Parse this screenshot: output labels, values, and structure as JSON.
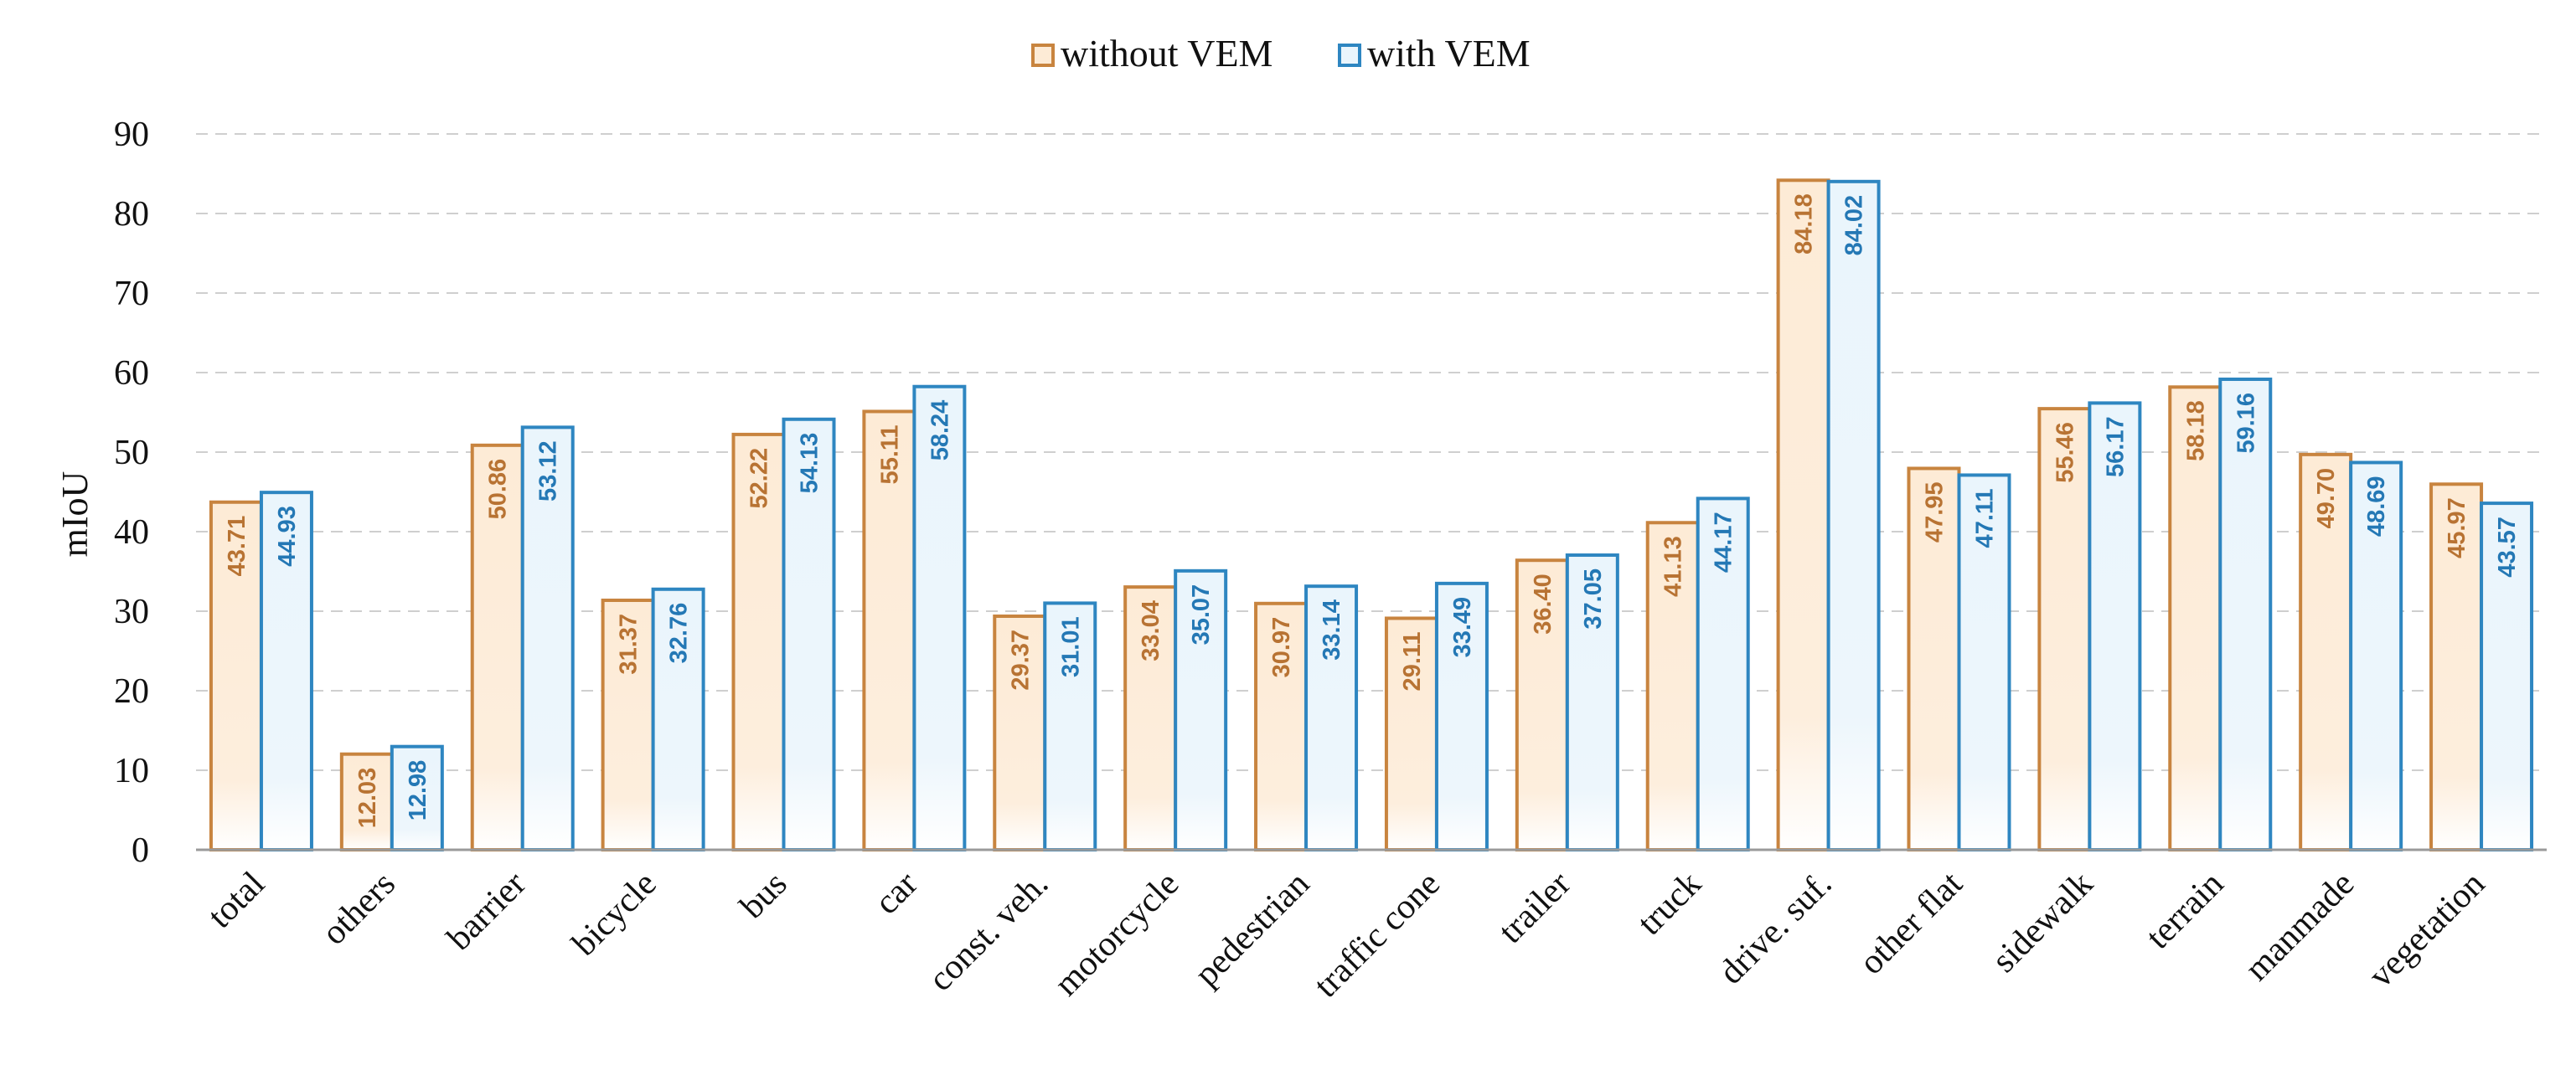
{
  "colors": {
    "without_stroke": "#C8843F",
    "without_fill": "#FDEBD6",
    "without_text": "#B87333",
    "with_stroke": "#2E86C1",
    "with_fill": "#EAF5FC",
    "with_text": "#2478B5"
  },
  "chart_data": {
    "type": "bar",
    "ylabel": "mIoU",
    "ylim": [
      0,
      90
    ],
    "yticks": [
      0,
      10,
      20,
      30,
      40,
      50,
      60,
      70,
      80,
      90
    ],
    "grid": true,
    "legend_position": "top-center",
    "categories": [
      "total",
      "others",
      "barrier",
      "bicycle",
      "bus",
      "car",
      "const. veh.",
      "motorcycle",
      "pedestrian",
      "traffic cone",
      "trailer",
      "truck",
      "drive. suf.",
      "other flat",
      "sidewalk",
      "terrain",
      "manmade",
      "vegetation"
    ],
    "series": [
      {
        "name": "without VEM",
        "values": [
          43.71,
          12.03,
          50.86,
          31.37,
          52.22,
          55.11,
          29.37,
          33.04,
          30.97,
          29.11,
          36.4,
          41.13,
          84.18,
          47.95,
          55.46,
          58.18,
          49.7,
          45.97
        ],
        "labels": [
          "43.71",
          "12.03",
          "50.86",
          "31.37",
          "52.22",
          "55.11",
          "29.37",
          "33.04",
          "30.97",
          "29.11",
          "36.40",
          "41.13",
          "84.18",
          "47.95",
          "55.46",
          "58.18",
          "49.70",
          "45.97"
        ]
      },
      {
        "name": "with VEM",
        "values": [
          44.93,
          12.98,
          53.12,
          32.76,
          54.13,
          58.24,
          31.01,
          35.07,
          33.14,
          33.49,
          37.05,
          44.17,
          84.02,
          47.11,
          56.17,
          59.16,
          48.69,
          43.57
        ],
        "labels": [
          "44.93",
          "12.98",
          "53.12",
          "32.76",
          "54.13",
          "58.24",
          "31.01",
          "35.07",
          "33.14",
          "33.49",
          "37.05",
          "44.17",
          "84.02",
          "47.11",
          "56.17",
          "59.16",
          "48.69",
          "43.57"
        ]
      }
    ]
  }
}
